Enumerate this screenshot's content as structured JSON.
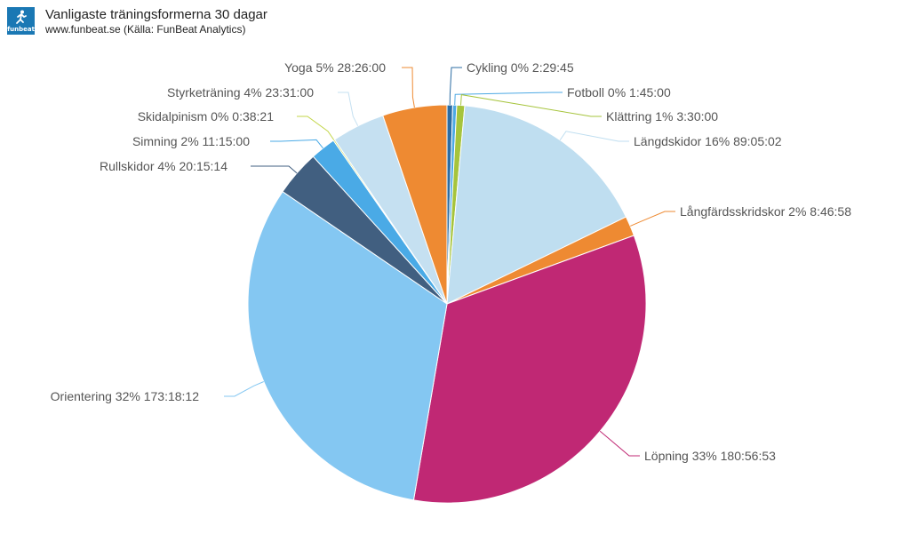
{
  "header": {
    "logo_text": "funbeat",
    "title": "Vanligaste träningsformerna 30 dagar",
    "subtitle": "www.funbeat.se (Källa: FunBeat Analytics)"
  },
  "chart_data": {
    "type": "pie",
    "title": "Vanligaste träningsformerna 30 dagar",
    "subtitle": "www.funbeat.se (Källa: FunBeat Analytics)",
    "series": [
      {
        "slices": [
          {
            "label": "Cykling 0% 2:29:45",
            "value": 2.4958,
            "color": "#2b6ca3"
          },
          {
            "label": "Fotboll 0% 1:45:00",
            "value": 1.75,
            "color": "#4da9e4"
          },
          {
            "label": "Klättring 1% 3:30:00",
            "value": 3.5,
            "color": "#a6c43c"
          },
          {
            "label": "Längdskidor 16% 89:05:02",
            "value": 89.0839,
            "color": "#bfdef0"
          },
          {
            "label": "Långfärdsskridskor 2% 8:46:58",
            "value": 8.7828,
            "color": "#ee8a32"
          },
          {
            "label": "Löpning 33% 180:56:53",
            "value": 180.9481,
            "color": "#c02874"
          },
          {
            "label": "Orientering 32% 173:18:12",
            "value": 173.3033,
            "color": "#84c7f2"
          },
          {
            "label": "Rullskidor 4% 20:15:14",
            "value": 20.2539,
            "color": "#415f80"
          },
          {
            "label": "Simning 2% 11:15:00",
            "value": 11.25,
            "color": "#4aaae6"
          },
          {
            "label": "Skidalpinism 0% 0:38:21",
            "value": 0.6392,
            "color": "#c3d64a"
          },
          {
            "label": "Styrketräning 4% 23:31:00",
            "value": 23.5167,
            "color": "#c5e0f1"
          },
          {
            "label": "Yoga 5% 28:26:00",
            "value": 28.4333,
            "color": "#ee8a32"
          }
        ]
      }
    ],
    "start_angle": "12 o'clock, clockwise",
    "legend": "none (data labels with connectors)"
  }
}
